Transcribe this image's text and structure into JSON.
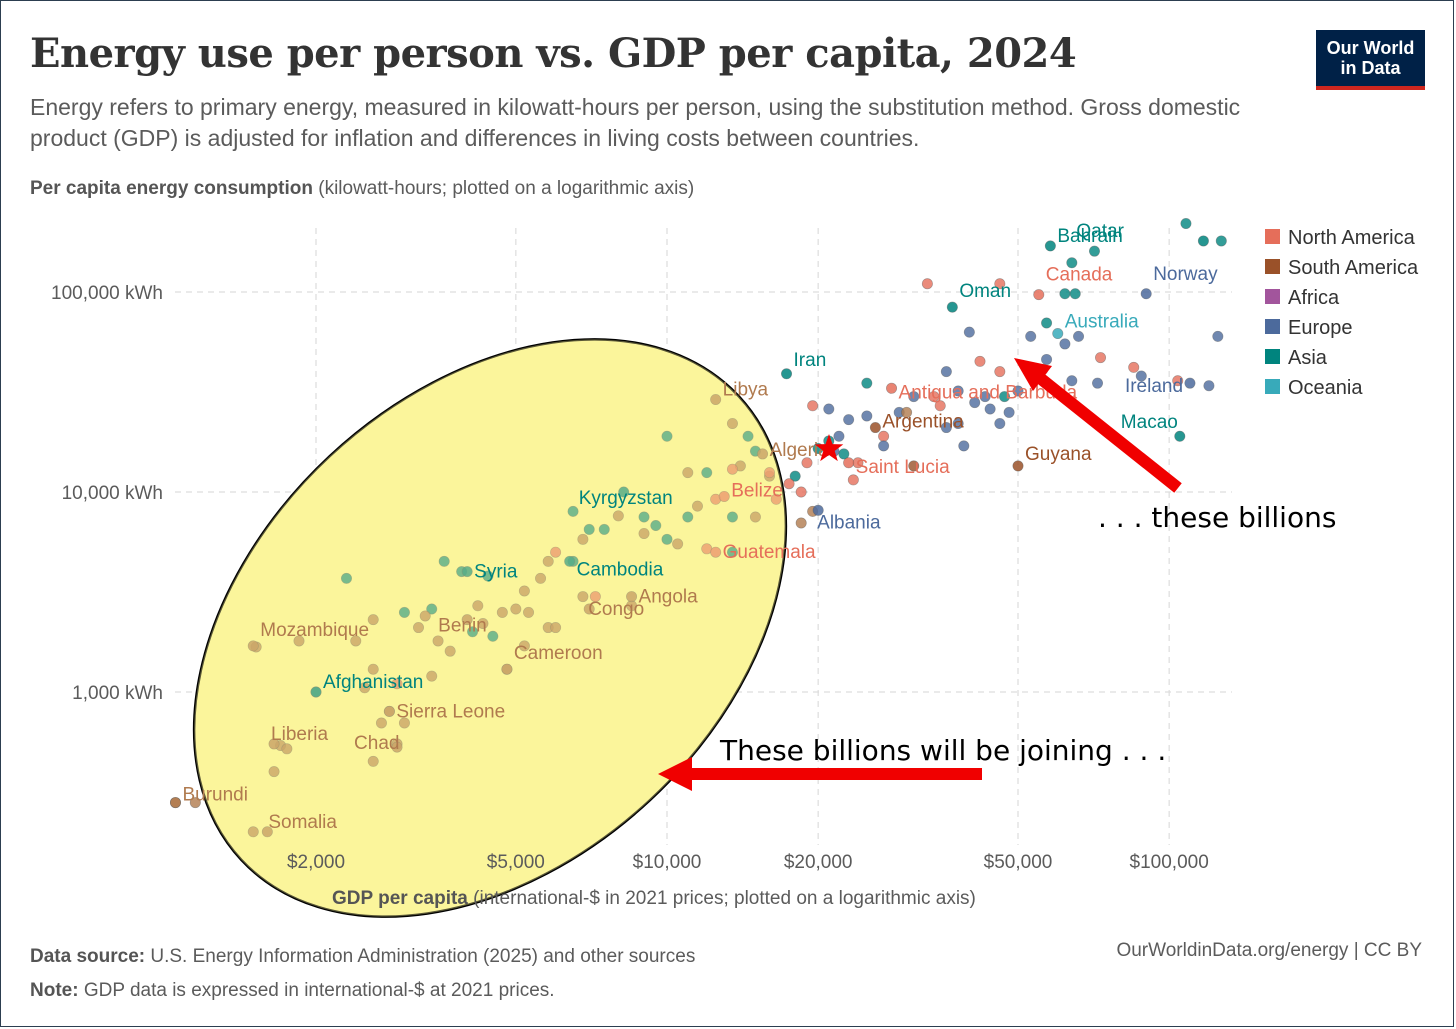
{
  "header": {
    "title": "Energy use per person vs. GDP per capita, 2024",
    "subtitle": "Energy refers to primary energy, measured in kilowatt-hours per person, using the substitution method. Gross domestic product (GDP) is adjusted for inflation and differences in living costs between countries.",
    "logo_line1": "Our World",
    "logo_line2": "in Data"
  },
  "yaxis": {
    "title_bold": "Per capita energy consumption",
    "title_rest": " (kilowatt-hours; plotted on a logarithmic axis)"
  },
  "xaxis": {
    "title_bold": "GDP per capita",
    "title_rest": " (international-$ in 2021 prices; plotted on a logarithmic axis)"
  },
  "footer": {
    "source_bold": "Data source:",
    "source_text": " U.S. Energy Information Administration (2025) and other sources",
    "note_bold": "Note:",
    "note_text": " GDP data is expressed in international-$ at 2021 prices.",
    "right": "OurWorldinData.org/energy | CC BY"
  },
  "annotations": {
    "left_text": "These billions will be joining . . .",
    "right_text": ". . . these billions"
  },
  "colors": {
    "North America": "#e56e5a",
    "South America": "#9a5129",
    "Africa": "#a2559c",
    "Europe": "#4c6a9c",
    "Asia": "#00847e",
    "Oceania": "#38aaba",
    "Africa_point": "#b07a4e",
    "arrow": "#f00000",
    "highlight": "#fbf59b"
  },
  "chart_data": {
    "type": "scatter",
    "title": "Energy use per person vs. GDP per capita, 2024",
    "xlabel": "GDP per capita",
    "ylabel": "Per capita energy consumption",
    "xscale": "log",
    "yscale": "log",
    "xlim": [
      1000,
      140000
    ],
    "ylim": [
      150,
      250000
    ],
    "xticks": [
      {
        "v": 2000,
        "label": "$2,000"
      },
      {
        "v": 5000,
        "label": "$5,000"
      },
      {
        "v": 10000,
        "label": "$10,000"
      },
      {
        "v": 20000,
        "label": "$20,000"
      },
      {
        "v": 50000,
        "label": "$50,000"
      },
      {
        "v": 100000,
        "label": "$100,000"
      }
    ],
    "yticks": [
      {
        "v": 1000,
        "label": "1,000 kWh"
      },
      {
        "v": 10000,
        "label": "10,000 kWh"
      },
      {
        "v": 100000,
        "label": "100,000 kWh"
      }
    ],
    "legend": [
      "North America",
      "South America",
      "Africa",
      "Europe",
      "Asia",
      "Oceania"
    ],
    "labeled": [
      {
        "name": "Qatar",
        "x": 117000,
        "y": 180000,
        "region": "Asia"
      },
      {
        "name": "Bahrain",
        "x": 58000,
        "y": 170000,
        "region": "Asia"
      },
      {
        "name": "Canada",
        "x": 55000,
        "y": 97000,
        "region": "North America"
      },
      {
        "name": "Norway",
        "x": 90000,
        "y": 98000,
        "region": "Europe"
      },
      {
        "name": "Oman",
        "x": 37000,
        "y": 84000,
        "region": "Asia"
      },
      {
        "name": "Australia",
        "x": 60000,
        "y": 62000,
        "region": "Oceania"
      },
      {
        "name": "Ireland",
        "x": 110000,
        "y": 35000,
        "region": "Europe"
      },
      {
        "name": "Iran",
        "x": 17300,
        "y": 39000,
        "region": "Asia"
      },
      {
        "name": "Antigua and Barbuda",
        "x": 28000,
        "y": 33000,
        "region": "North America"
      },
      {
        "name": "Argentina",
        "x": 26000,
        "y": 21000,
        "region": "South America"
      },
      {
        "name": "Macao",
        "x": 105000,
        "y": 19000,
        "region": "Asia"
      },
      {
        "name": "Saint Lucia",
        "x": 23000,
        "y": 14000,
        "region": "North America"
      },
      {
        "name": "Guyana",
        "x": 50000,
        "y": 13500,
        "region": "South America"
      },
      {
        "name": "Albania",
        "x": 20000,
        "y": 8100,
        "region": "Europe"
      },
      {
        "name": "Libya",
        "x": 12500,
        "y": 29000,
        "region": "Africa"
      },
      {
        "name": "Algeria",
        "x": 15500,
        "y": 15500,
        "region": "Africa"
      },
      {
        "name": "Belize",
        "x": 13000,
        "y": 9500,
        "region": "North America"
      },
      {
        "name": "Kyrgyzstan",
        "x": 8200,
        "y": 10000,
        "region": "Asia"
      },
      {
        "name": "Guatemala",
        "x": 12500,
        "y": 5000,
        "region": "North America"
      },
      {
        "name": "Cambodia",
        "x": 6400,
        "y": 4500,
        "region": "Asia"
      },
      {
        "name": "Syria",
        "x": 4000,
        "y": 4000,
        "region": "Asia"
      },
      {
        "name": "Angola",
        "x": 8500,
        "y": 3000,
        "region": "Africa"
      },
      {
        "name": "Congo",
        "x": 7000,
        "y": 2600,
        "region": "Africa"
      },
      {
        "name": "Benin",
        "x": 4000,
        "y": 2300,
        "region": "Africa"
      },
      {
        "name": "Mozambique",
        "x": 1500,
        "y": 1700,
        "region": "Africa"
      },
      {
        "name": "Cameroon",
        "x": 4800,
        "y": 1300,
        "region": "Africa"
      },
      {
        "name": "Afghanistan",
        "x": 2000,
        "y": 1000,
        "region": "Asia"
      },
      {
        "name": "Sierra Leone",
        "x": 2800,
        "y": 800,
        "region": "Africa"
      },
      {
        "name": "Liberia",
        "x": 1650,
        "y": 550,
        "region": "Africa"
      },
      {
        "name": "Chad",
        "x": 2900,
        "y": 530,
        "region": "Africa"
      },
      {
        "name": "Burundi",
        "x": 1050,
        "y": 280,
        "region": "Africa"
      },
      {
        "name": "Somalia",
        "x": 1600,
        "y": 200,
        "region": "Africa"
      }
    ],
    "points": [
      [
        127000,
        180000,
        "Asia"
      ],
      [
        108000,
        220000,
        "Asia"
      ],
      [
        71000,
        160000,
        "Asia"
      ],
      [
        64000,
        140000,
        "Asia"
      ],
      [
        62000,
        98000,
        "Asia"
      ],
      [
        46000,
        110000,
        "North America"
      ],
      [
        33000,
        110000,
        "North America"
      ],
      [
        65000,
        98000,
        "Asia"
      ],
      [
        57000,
        70000,
        "Asia"
      ],
      [
        66000,
        60000,
        "Europe"
      ],
      [
        62000,
        55000,
        "Europe"
      ],
      [
        73000,
        47000,
        "North America"
      ],
      [
        57000,
        46000,
        "Europe"
      ],
      [
        85000,
        42000,
        "North America"
      ],
      [
        104000,
        36000,
        "North America"
      ],
      [
        88000,
        38000,
        "Europe"
      ],
      [
        120000,
        34000,
        "Europe"
      ],
      [
        125000,
        60000,
        "Europe"
      ],
      [
        72000,
        35000,
        "Europe"
      ],
      [
        64000,
        36000,
        "Europe"
      ],
      [
        40000,
        63000,
        "Europe"
      ],
      [
        56000,
        41000,
        "Europe"
      ],
      [
        47000,
        30000,
        "Asia"
      ],
      [
        44000,
        26000,
        "Europe"
      ],
      [
        48000,
        25000,
        "Europe"
      ],
      [
        46000,
        22000,
        "Europe"
      ],
      [
        41000,
        28000,
        "Europe"
      ],
      [
        38000,
        32000,
        "Europe"
      ],
      [
        36000,
        21000,
        "Europe"
      ],
      [
        39000,
        17000,
        "Europe"
      ],
      [
        34000,
        30000,
        "North America"
      ],
      [
        29000,
        25000,
        "Europe"
      ],
      [
        31000,
        30000,
        "Europe"
      ],
      [
        25000,
        24000,
        "Europe"
      ],
      [
        23000,
        23000,
        "Europe"
      ],
      [
        22000,
        19000,
        "Europe"
      ],
      [
        22500,
        15500,
        "Asia"
      ],
      [
        24000,
        14000,
        "North America"
      ],
      [
        23500,
        11500,
        "North America"
      ],
      [
        31000,
        13500,
        "South America"
      ],
      [
        27000,
        19000,
        "North America"
      ],
      [
        25000,
        35000,
        "Asia"
      ],
      [
        30000,
        25000,
        "Africa"
      ],
      [
        36000,
        40000,
        "Europe"
      ],
      [
        42000,
        45000,
        "North America"
      ],
      [
        53000,
        60000,
        "Europe"
      ],
      [
        46000,
        40000,
        "North America"
      ],
      [
        35000,
        27000,
        "North America"
      ],
      [
        27000,
        17000,
        "Europe"
      ],
      [
        38000,
        22000,
        "Europe"
      ],
      [
        43000,
        30000,
        "Europe"
      ],
      [
        50000,
        32000,
        "Europe"
      ],
      [
        21000,
        18000,
        "Asia"
      ],
      [
        21500,
        16000,
        "Europe"
      ],
      [
        21000,
        26000,
        "Europe"
      ],
      [
        20000,
        16500,
        "Asia"
      ],
      [
        19500,
        27000,
        "North America"
      ],
      [
        19000,
        14000,
        "North America"
      ],
      [
        18000,
        12000,
        "Asia"
      ],
      [
        17500,
        11000,
        "North America"
      ],
      [
        18500,
        10000,
        "North America"
      ],
      [
        19500,
        8000,
        "Africa"
      ],
      [
        18500,
        7000,
        "Africa"
      ],
      [
        16000,
        12000,
        "Africa"
      ],
      [
        15000,
        16000,
        "Asia"
      ],
      [
        14500,
        19000,
        "Asia"
      ],
      [
        13500,
        22000,
        "Africa"
      ],
      [
        14000,
        13500,
        "Africa"
      ],
      [
        12000,
        12500,
        "Asia"
      ],
      [
        11000,
        12500,
        "Africa"
      ],
      [
        10000,
        19000,
        "Asia"
      ],
      [
        11500,
        8500,
        "Africa"
      ],
      [
        11000,
        7500,
        "Asia"
      ],
      [
        12500,
        9200,
        "North America"
      ],
      [
        13500,
        7500,
        "Asia"
      ],
      [
        15000,
        7500,
        "Africa"
      ],
      [
        16500,
        9200,
        "North America"
      ],
      [
        16000,
        12500,
        "North America"
      ],
      [
        13500,
        13000,
        "North America"
      ],
      [
        9000,
        7500,
        "Asia"
      ],
      [
        9500,
        6800,
        "Asia"
      ],
      [
        10000,
        5800,
        "Asia"
      ],
      [
        8000,
        7600,
        "Africa"
      ],
      [
        9000,
        6200,
        "Africa"
      ],
      [
        10500,
        5500,
        "Africa"
      ],
      [
        12000,
        5200,
        "North America"
      ],
      [
        13500,
        5000,
        "Asia"
      ],
      [
        6500,
        8000,
        "Asia"
      ],
      [
        7000,
        6500,
        "Asia"
      ],
      [
        7500,
        6500,
        "Asia"
      ],
      [
        6800,
        5800,
        "Africa"
      ],
      [
        6000,
        5000,
        "North America"
      ],
      [
        6500,
        4500,
        "Asia"
      ],
      [
        5800,
        4500,
        "Africa"
      ],
      [
        5600,
        3700,
        "Africa"
      ],
      [
        5200,
        3200,
        "Africa"
      ],
      [
        6800,
        3000,
        "Africa"
      ],
      [
        7200,
        3000,
        "North America"
      ],
      [
        5000,
        2600,
        "Africa"
      ],
      [
        5300,
        2500,
        "Africa"
      ],
      [
        4200,
        2700,
        "Africa"
      ],
      [
        4300,
        2200,
        "Africa"
      ],
      [
        4700,
        2500,
        "Africa"
      ],
      [
        5800,
        2100,
        "Africa"
      ],
      [
        5200,
        1700,
        "Africa"
      ],
      [
        4500,
        1900,
        "Asia"
      ],
      [
        4800,
        1300,
        "Africa"
      ],
      [
        6000,
        2100,
        "Africa"
      ],
      [
        8500,
        2700,
        "Africa"
      ],
      [
        4400,
        3800,
        "Asia"
      ],
      [
        3900,
        4000,
        "Asia"
      ],
      [
        3600,
        4500,
        "Asia"
      ],
      [
        3400,
        2600,
        "Asia"
      ],
      [
        3300,
        2400,
        "Africa"
      ],
      [
        3200,
        2100,
        "Africa"
      ],
      [
        3500,
        1800,
        "Africa"
      ],
      [
        3700,
        1600,
        "Africa"
      ],
      [
        4100,
        2000,
        "Asia"
      ],
      [
        3000,
        2500,
        "Asia"
      ],
      [
        2600,
        2300,
        "Africa"
      ],
      [
        3400,
        1200,
        "Africa"
      ],
      [
        2300,
        3700,
        "Asia"
      ],
      [
        2000,
        1000,
        "Asia"
      ],
      [
        2400,
        1800,
        "Africa"
      ],
      [
        1850,
        1800,
        "Africa"
      ],
      [
        2600,
        1300,
        "Africa"
      ],
      [
        2900,
        1100,
        "North America"
      ],
      [
        2500,
        1050,
        "Africa"
      ],
      [
        2800,
        800,
        "Africa"
      ],
      [
        3000,
        700,
        "Africa"
      ],
      [
        2700,
        700,
        "Africa"
      ],
      [
        2900,
        550,
        "Africa"
      ],
      [
        2600,
        450,
        "Africa"
      ],
      [
        1700,
        540,
        "Africa"
      ],
      [
        1750,
        520,
        "Africa"
      ],
      [
        1650,
        400,
        "Africa"
      ],
      [
        1050,
        280,
        "Africa"
      ],
      [
        1150,
        280,
        "Africa"
      ],
      [
        1500,
        200,
        "Africa"
      ],
      [
        1520,
        1680,
        "Africa"
      ]
    ]
  }
}
